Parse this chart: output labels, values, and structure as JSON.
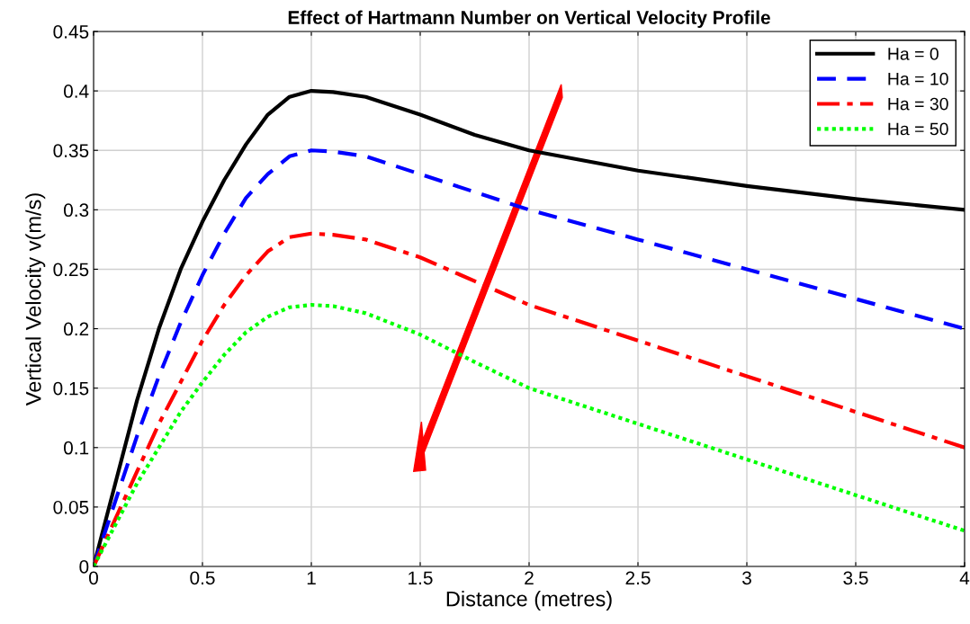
{
  "chart_data": {
    "type": "line",
    "title": "Effect of Hartmann Number on Vertical Velocity Profile",
    "xlabel": "Distance (metres)",
    "ylabel": "Vertical Velocity v(m/s)",
    "x": [
      0,
      0.1,
      0.2,
      0.3,
      0.4,
      0.5,
      0.6,
      0.7,
      0.8,
      0.9,
      1,
      1.1,
      1.25,
      1.5,
      1.75,
      2,
      2.5,
      3,
      3.5,
      4
    ],
    "series": [
      {
        "name": "Ha = 0",
        "color": "#000000",
        "line_style": "solid",
        "values": [
          0,
          0.07,
          0.14,
          0.2,
          0.25,
          0.29,
          0.325,
          0.355,
          0.38,
          0.395,
          0.4,
          0.399,
          0.395,
          0.38,
          0.363,
          0.35,
          0.333,
          0.32,
          0.309,
          0.3
        ]
      },
      {
        "name": "Ha = 10",
        "color": "#0000ff",
        "line_style": "dashed",
        "values": [
          0,
          0.055,
          0.11,
          0.16,
          0.205,
          0.245,
          0.28,
          0.31,
          0.33,
          0.345,
          0.35,
          0.349,
          0.345,
          0.33,
          0.315,
          0.3,
          0.275,
          0.25,
          0.225,
          0.2
        ]
      },
      {
        "name": "Ha = 30",
        "color": "#ff0000",
        "line_style": "dashdot",
        "values": [
          0,
          0.04,
          0.08,
          0.12,
          0.155,
          0.19,
          0.22,
          0.245,
          0.265,
          0.277,
          0.28,
          0.279,
          0.275,
          0.26,
          0.24,
          0.22,
          0.19,
          0.16,
          0.13,
          0.1
        ]
      },
      {
        "name": "Ha = 50",
        "color": "#00ff00",
        "line_style": "dotted",
        "values": [
          0,
          0.035,
          0.07,
          0.1,
          0.13,
          0.155,
          0.178,
          0.197,
          0.21,
          0.218,
          0.22,
          0.219,
          0.213,
          0.195,
          0.172,
          0.15,
          0.12,
          0.09,
          0.06,
          0.03
        ]
      }
    ],
    "xlim": [
      0,
      4
    ],
    "xticks": [
      0,
      0.5,
      1,
      1.5,
      2,
      2.5,
      3,
      3.5,
      4
    ],
    "ylim": [
      0,
      0.45
    ],
    "yticks": [
      0,
      0.05,
      0.1,
      0.15,
      0.2,
      0.25,
      0.3,
      0.35,
      0.4,
      0.45
    ],
    "grid": true,
    "legend": "top right"
  }
}
